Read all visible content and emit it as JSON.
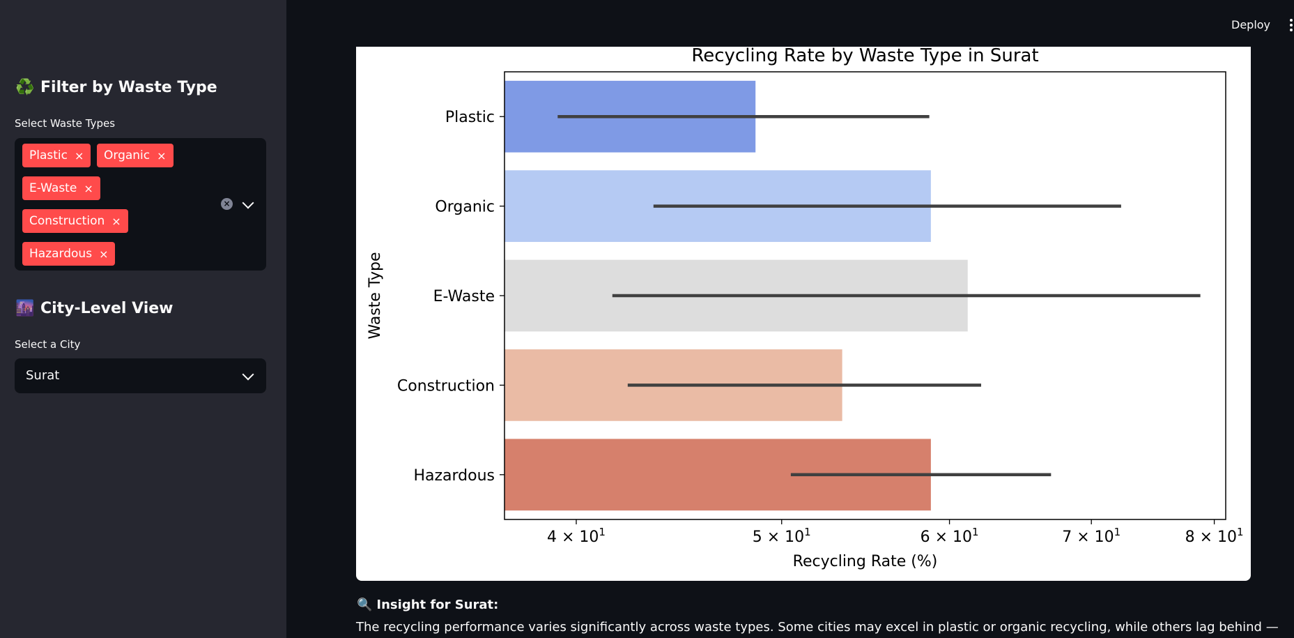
{
  "header": {
    "deploy_label": "Deploy",
    "menu_icon": "kebab-menu-icon"
  },
  "sidebar": {
    "filter_heading": {
      "emoji": "♻️",
      "text": "Filter by Waste Type"
    },
    "waste_select_label": "Select Waste Types",
    "waste_tags": [
      "Plastic",
      "Organic",
      "E-Waste",
      "Construction",
      "Hazardous"
    ],
    "tag_remove_glyph": "×",
    "city_heading": {
      "emoji": "🌆",
      "text": "City-Level View"
    },
    "city_select_label": "Select a City",
    "city_selected": "Surat"
  },
  "chart_data": {
    "type": "bar",
    "orientation": "horizontal",
    "title": "Recycling Rate by Waste Type in Surat",
    "xlabel": "Recycling Rate (%)",
    "ylabel": "Waste Type",
    "x_scale": "log",
    "xlim": [
      37,
      81
    ],
    "x_ticks": [
      40,
      50,
      60,
      70,
      80
    ],
    "x_tick_labels": [
      {
        "base": "4",
        "exp": "1"
      },
      {
        "base": "5",
        "exp": "1"
      },
      {
        "base": "6",
        "exp": "1"
      },
      {
        "base": "7",
        "exp": "1"
      },
      {
        "base": "8",
        "exp": "1"
      }
    ],
    "categories": [
      "Plastic",
      "Organic",
      "E-Waste",
      "Construction",
      "Hazardous"
    ],
    "values": [
      48.6,
      58.8,
      61.2,
      53.4,
      58.8
    ],
    "error_low": [
      39.2,
      43.5,
      41.6,
      42.3,
      50.5
    ],
    "error_high": [
      58.7,
      72.3,
      78.8,
      62.1,
      67.0
    ],
    "colors": [
      "#7f9ae5",
      "#b5caf3",
      "#dddddd",
      "#eabba5",
      "#d6806c"
    ],
    "error_color": "#404040",
    "grid": false
  },
  "insight": {
    "icon": "🔍",
    "title": "Insight for Surat:",
    "text": "The recycling performance varies significantly across waste types. Some cities may excel in plastic or organic recycling, while others lag behind —"
  }
}
